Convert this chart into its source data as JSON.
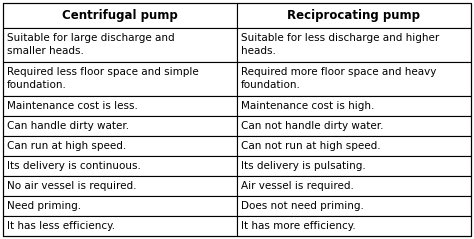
{
  "col1_header": "Centrifugal pump",
  "col2_header": "Reciprocating pump",
  "rows": [
    [
      "Suitable for large discharge and\nsmaller heads.",
      "Suitable for less discharge and higher\nheads."
    ],
    [
      "Required less floor space and simple\nfoundation.",
      "Required more floor space and heavy\nfoundation."
    ],
    [
      "Maintenance cost is less.",
      "Maintenance cost is high."
    ],
    [
      "Can handle dirty water.",
      "Can not handle dirty water."
    ],
    [
      "Can run at high speed.",
      "Can not run at high speed."
    ],
    [
      "Its delivery is continuous.",
      "Its delivery is pulsating."
    ],
    [
      "No air vessel is required.",
      "Air vessel is required."
    ],
    [
      "Need priming.",
      "Does not need priming."
    ],
    [
      "It has less efficiency.",
      "It has more efficiency."
    ]
  ],
  "bg_color": "#ffffff",
  "border_color": "#000000",
  "text_color": "#000000",
  "header_fontsize": 8.5,
  "cell_fontsize": 7.5,
  "fig_width": 4.74,
  "fig_height": 2.39,
  "dpi": 100
}
